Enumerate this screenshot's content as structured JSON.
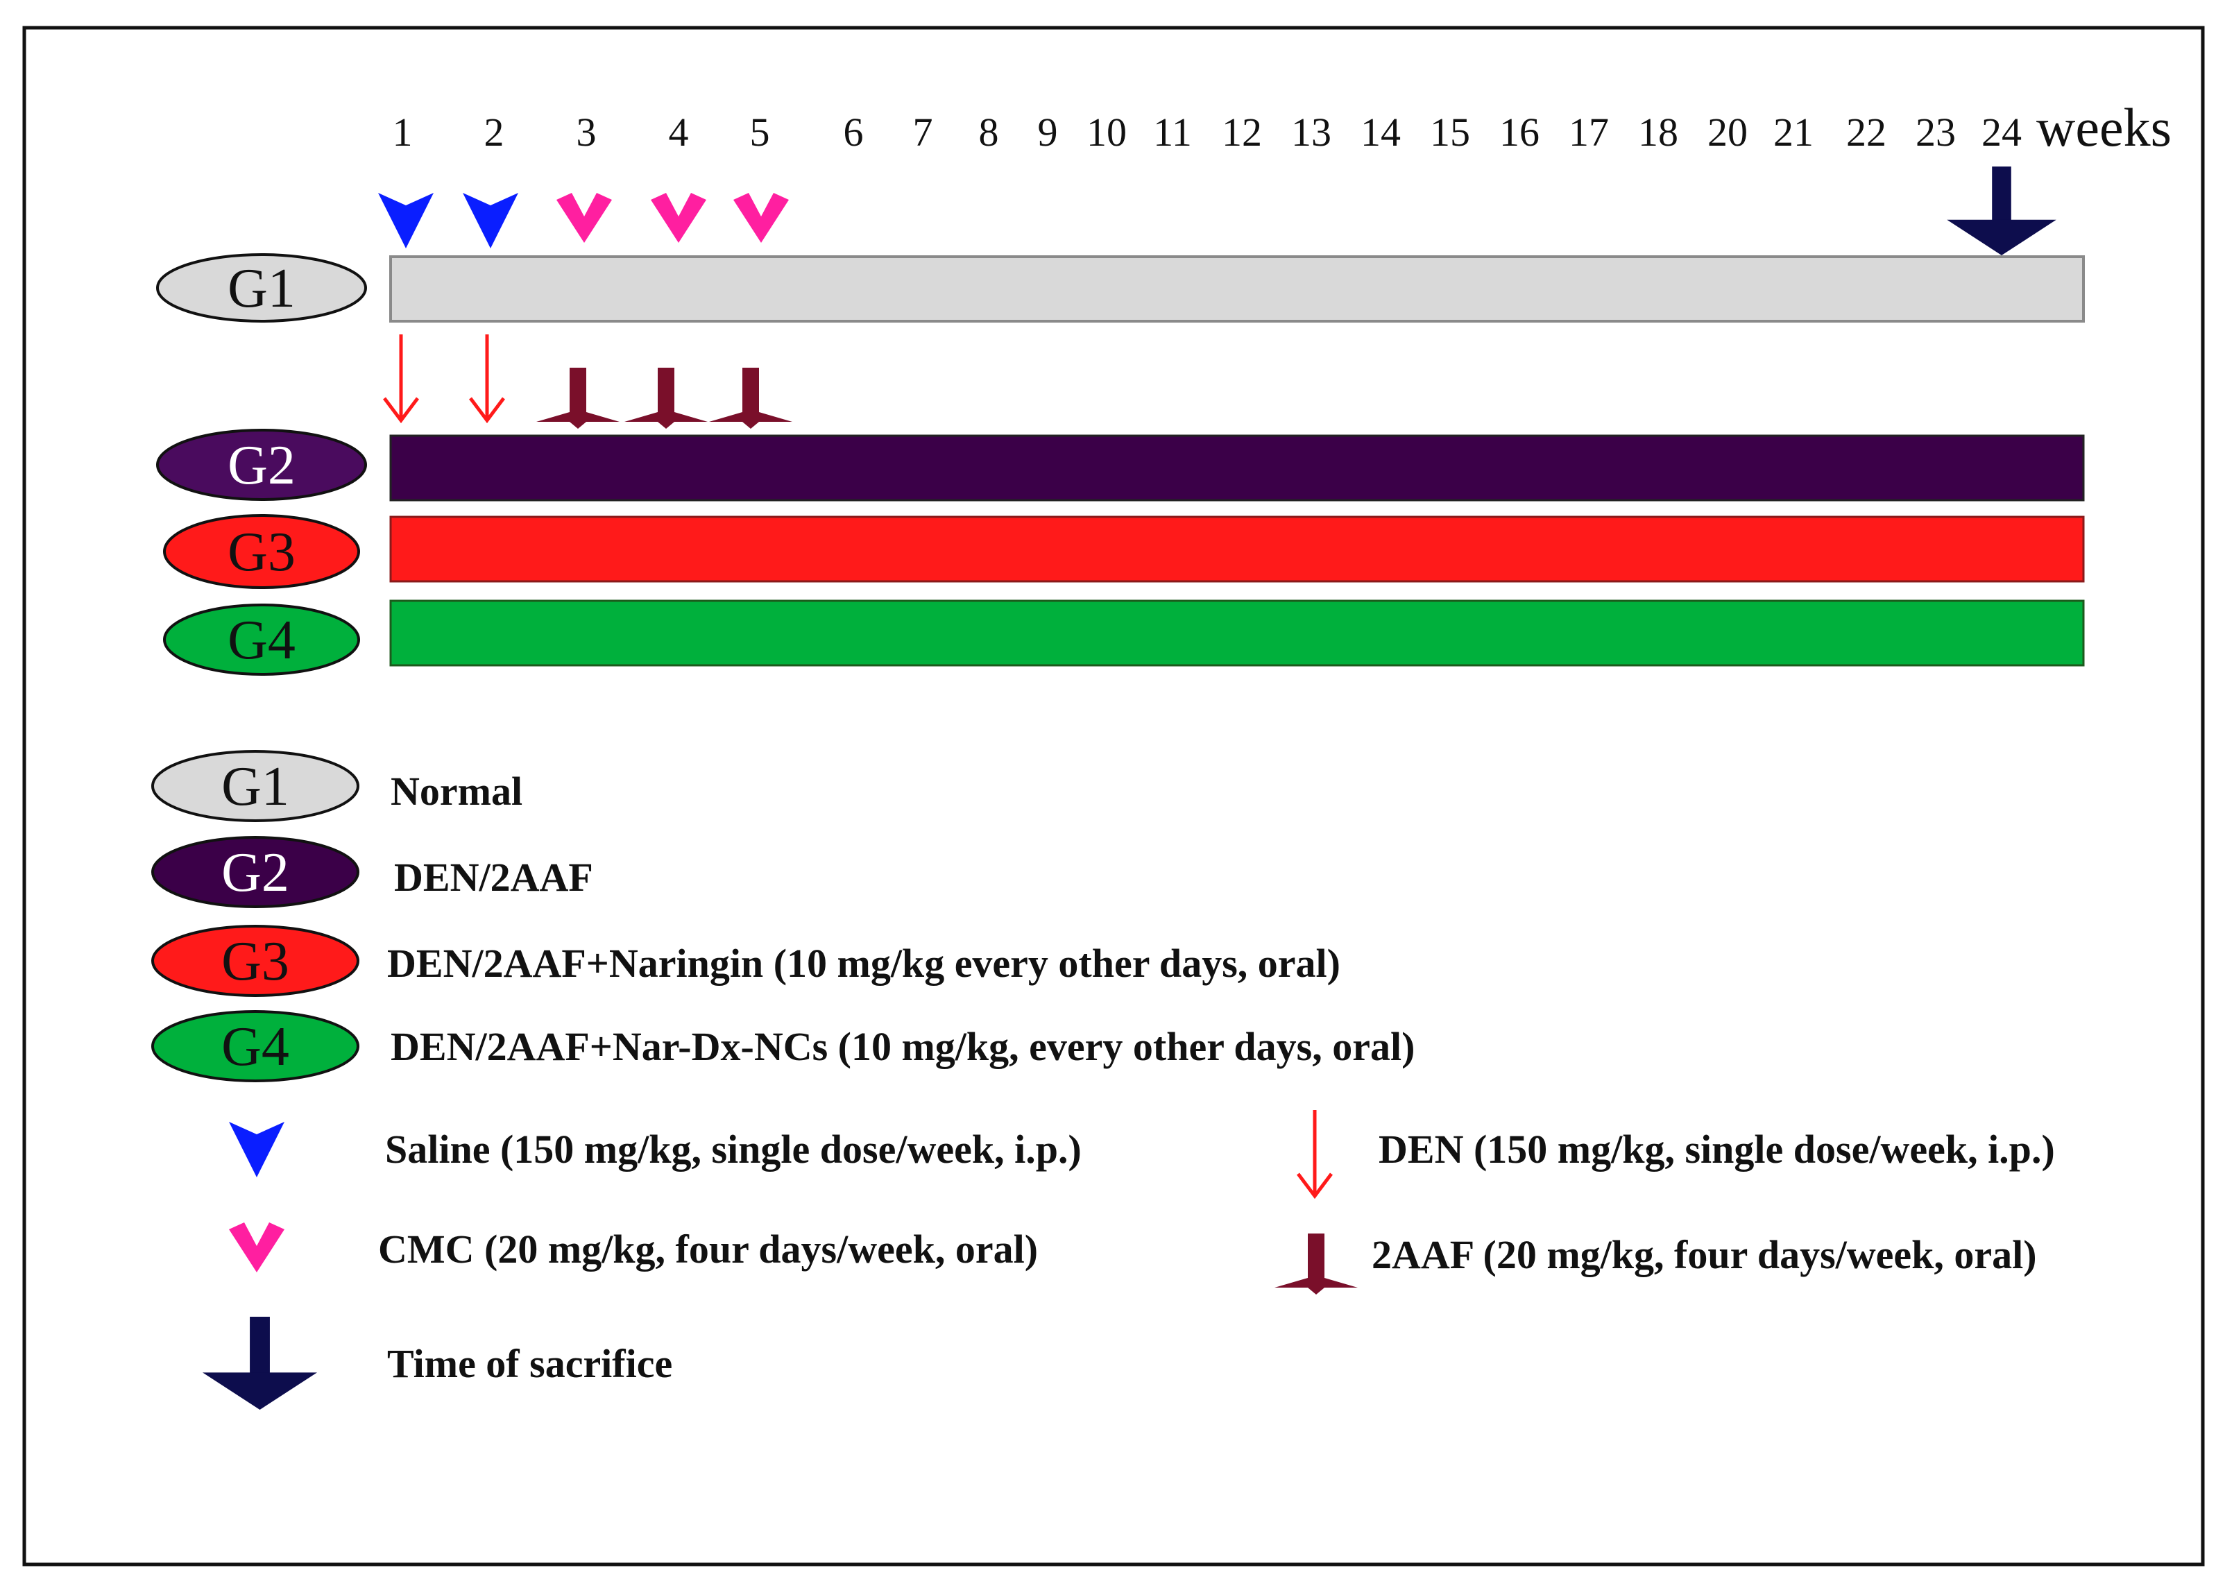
{
  "timeline": {
    "weeks": [
      "1",
      "2",
      "3",
      "4",
      "5",
      "6",
      "7",
      "8",
      "9",
      "10",
      "11",
      "12",
      "13",
      "14",
      "15",
      "16",
      "17",
      "18",
      "20",
      "21",
      "22",
      "23",
      "24"
    ],
    "unit_label": "weeks"
  },
  "groups": [
    {
      "id": "G1",
      "label": "G1",
      "color": "#d9d9d9",
      "text_color": "#111111"
    },
    {
      "id": "G2",
      "label": "G2",
      "color": "#3b0048",
      "text_color": "#ffffff"
    },
    {
      "id": "G3",
      "label": "G3",
      "color": "#ff1a1a",
      "text_color": "#111111"
    },
    {
      "id": "G4",
      "label": "G4",
      "color": "#00b03c",
      "text_color": "#111111"
    }
  ],
  "legend": {
    "groups": [
      {
        "label": "G1",
        "description": "Normal"
      },
      {
        "label": "G2",
        "description": "DEN/2AAF"
      },
      {
        "label": "G3",
        "description": "DEN/2AAF+Naringin (10 mg/kg  every other days, oral)"
      },
      {
        "label": "G4",
        "description": "DEN/2AAF+Nar-Dx-NCs  (10 mg/kg, every other days, oral)"
      }
    ],
    "symbols": {
      "saline": {
        "text": "Saline (150 mg/kg, single dose/week, i.p.)",
        "icon": "blue-arrowhead-icon",
        "color": "#0a1eff"
      },
      "cmc": {
        "text": "CMC (20 mg/kg, four days/week, oral)",
        "icon": "pink-chevron-icon",
        "color": "#ff1fa0"
      },
      "sacrifice": {
        "text": "Time of sacrifice",
        "icon": "navy-down-arrow-icon",
        "color": "#0d0d4d"
      },
      "den": {
        "text": "DEN (150 mg/kg, single dose/week, i.p.)",
        "icon": "red-thin-arrow-icon",
        "color": "#ff1a1a"
      },
      "aaf": {
        "text": "2AAF (20 mg/kg, four days/week, oral)",
        "icon": "maroon-arrow-icon",
        "color": "#7a0f2a"
      }
    }
  }
}
